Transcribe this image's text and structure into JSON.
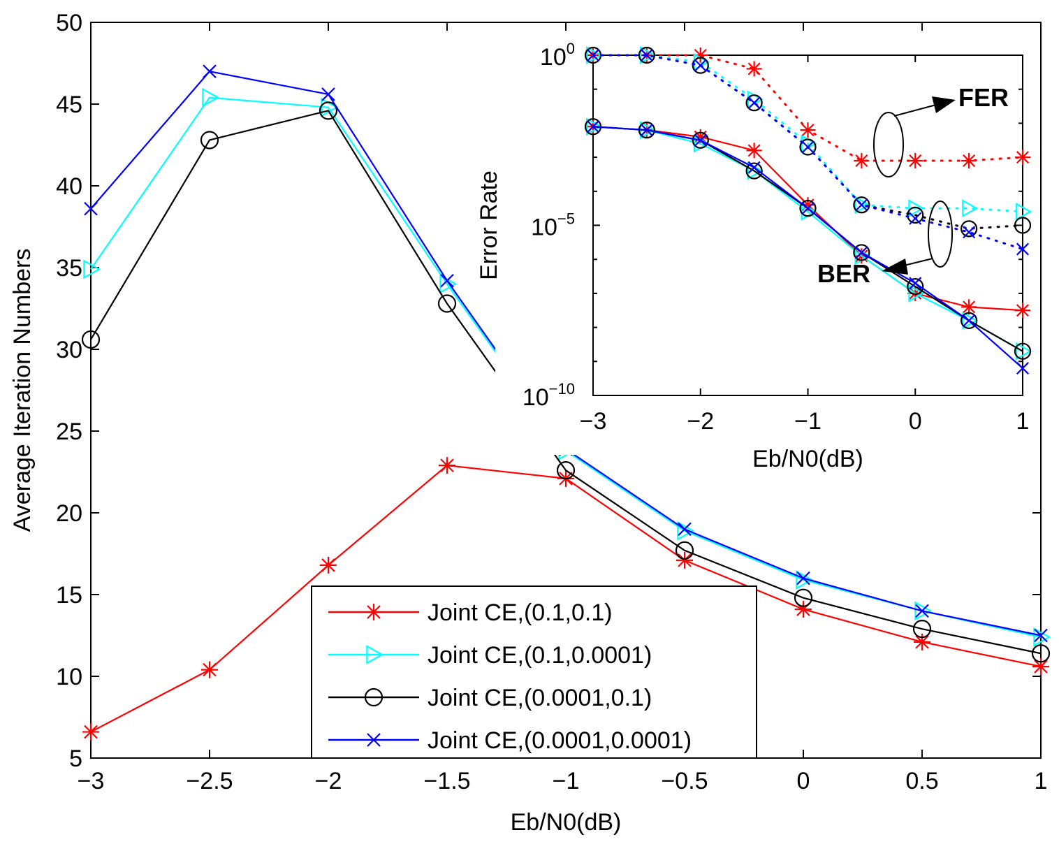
{
  "chart_data": [
    {
      "type": "line",
      "title": "",
      "xlabel": "Eb/N0(dB)",
      "ylabel": "Average Iteration Numbers",
      "xlim": [
        -3,
        1
      ],
      "ylim": [
        5,
        50
      ],
      "x": [
        -3,
        -2.5,
        -2,
        -1.5,
        -1,
        -0.5,
        0,
        0.5,
        1
      ],
      "xticks": [
        "−3",
        "−2.5",
        "−2",
        "−1.5",
        "−1",
        "−0.5",
        "0",
        "0.5",
        "1"
      ],
      "yticks": [
        "5",
        "10",
        "15",
        "20",
        "25",
        "30",
        "35",
        "40",
        "45",
        "50"
      ],
      "series": [
        {
          "name": "Joint CE,(0.1,0.1)",
          "color": "#ff0000",
          "marker": "star",
          "values": [
            6.6,
            10.4,
            16.8,
            22.9,
            22.1,
            17.1,
            14.1,
            12.1,
            10.6
          ]
        },
        {
          "name": "Joint CE,(0.1,0.0001)",
          "color": "#00ffff",
          "marker": "triangle-right",
          "values": [
            34.9,
            45.4,
            44.8,
            34.0,
            23.8,
            18.9,
            15.9,
            14.0,
            12.4
          ]
        },
        {
          "name": "Joint CE,(0.0001,0.1)",
          "color": "#000000",
          "marker": "circle",
          "values": [
            30.6,
            42.8,
            44.6,
            32.8,
            22.6,
            17.7,
            14.8,
            12.9,
            11.4
          ]
        },
        {
          "name": "Joint CE,(0.0001,0.0001)",
          "color": "#0000ff",
          "marker": "x",
          "values": [
            38.6,
            47.0,
            45.6,
            34.2,
            23.9,
            19.0,
            16.0,
            14.0,
            12.5
          ]
        }
      ],
      "legend": "bottom-center"
    },
    {
      "type": "line",
      "title": "",
      "xlabel": "Eb/N0(dB)",
      "ylabel": "Error Rate",
      "xscale": "linear",
      "yscale": "log",
      "xlim": [
        -3,
        1
      ],
      "ylim_log10": [
        -10,
        0
      ],
      "x": [
        -3,
        -2.5,
        -2,
        -1.5,
        -1,
        -0.5,
        0,
        0.5,
        1
      ],
      "xticks": [
        "−3",
        "−2",
        "−1",
        "0",
        "1"
      ],
      "yticks": [
        {
          "base": "10",
          "exp": "0"
        },
        {
          "base": "10",
          "exp": "−5"
        },
        {
          "base": "10",
          "exp": "−10"
        }
      ],
      "annotations": [
        "FER",
        "BER"
      ],
      "series": [
        {
          "name": "Joint CE,(0.1,0.1) FER",
          "metric": "FER",
          "color": "#ff0000",
          "marker": "star",
          "style": "dotted",
          "log10_values": [
            0,
            0,
            0,
            -0.4,
            -2.2,
            -3.1,
            -3.1,
            -3.1,
            -3.0
          ]
        },
        {
          "name": "Joint CE,(0.1,0.0001) FER",
          "metric": "FER",
          "color": "#00ffff",
          "marker": "triangle-right",
          "style": "dotted",
          "log10_values": [
            0,
            0,
            -0.2,
            -1.3,
            -2.6,
            -4.4,
            -4.5,
            -4.5,
            -4.6
          ]
        },
        {
          "name": "Joint CE,(0.0001,0.1) FER",
          "metric": "FER",
          "color": "#000000",
          "marker": "circle",
          "style": "dotted",
          "log10_values": [
            0,
            0,
            -0.3,
            -1.4,
            -2.7,
            -4.4,
            -4.7,
            -5.1,
            -5.0
          ]
        },
        {
          "name": "Joint CE,(0.0001,0.0001) FER",
          "metric": "FER",
          "color": "#0000ff",
          "marker": "x",
          "style": "dotted",
          "log10_values": [
            0,
            0,
            -0.3,
            -1.4,
            -2.7,
            -4.4,
            -4.8,
            -5.2,
            -5.7
          ]
        },
        {
          "name": "Joint CE,(0.1,0.1) BER",
          "metric": "BER",
          "color": "#ff0000",
          "marker": "star",
          "style": "solid",
          "log10_values": [
            -2.1,
            -2.2,
            -2.4,
            -2.8,
            -4.4,
            -5.9,
            -7.0,
            -7.4,
            -7.5
          ]
        },
        {
          "name": "Joint CE,(0.1,0.0001) BER",
          "metric": "BER",
          "color": "#00ffff",
          "marker": "triangle-right",
          "style": "solid",
          "log10_values": [
            -2.1,
            -2.2,
            -2.6,
            -3.4,
            -4.6,
            -5.9,
            -7.0,
            -7.8,
            -8.7
          ]
        },
        {
          "name": "Joint CE,(0.0001,0.1) BER",
          "metric": "BER",
          "color": "#000000",
          "marker": "circle",
          "style": "solid",
          "log10_values": [
            -2.1,
            -2.2,
            -2.5,
            -3.4,
            -4.5,
            -5.8,
            -6.8,
            -7.8,
            -8.7
          ]
        },
        {
          "name": "Joint CE,(0.0001,0.0001) BER",
          "metric": "BER",
          "color": "#0000ff",
          "marker": "x",
          "style": "solid",
          "log10_values": [
            -2.1,
            -2.2,
            -2.5,
            -3.3,
            -4.5,
            -5.8,
            -6.7,
            -7.8,
            -9.2
          ]
        }
      ]
    }
  ]
}
